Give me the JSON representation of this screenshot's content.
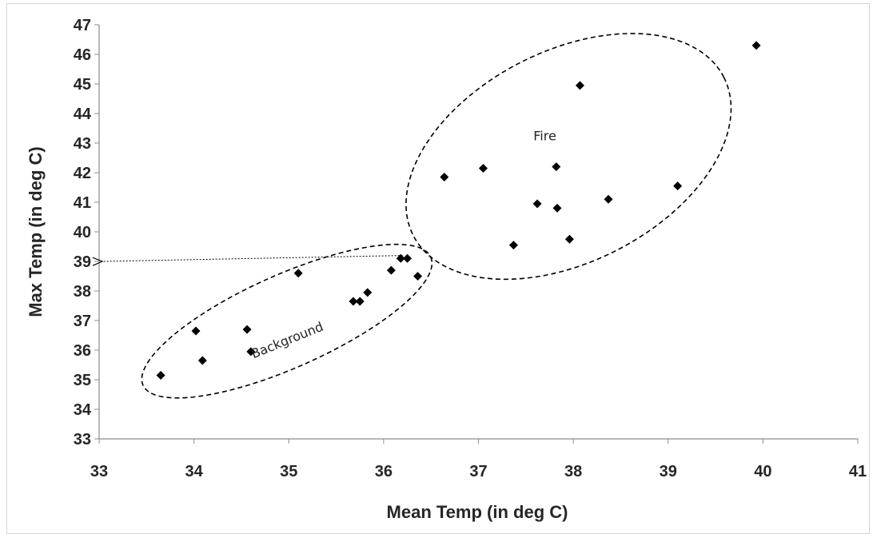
{
  "chart_data": {
    "type": "scatter",
    "title": "",
    "xlabel": "Mean Temp (in deg C)",
    "ylabel": "Max Temp (in deg C)",
    "xlim": [
      33,
      41
    ],
    "ylim": [
      33,
      47
    ],
    "x_ticks": [
      "33",
      "34",
      "35",
      "36",
      "37",
      "38",
      "39",
      "40",
      "41"
    ],
    "y_ticks": [
      "33",
      "34",
      "35",
      "36",
      "37",
      "38",
      "39",
      "40",
      "41",
      "42",
      "43",
      "44",
      "45",
      "46",
      "47"
    ],
    "grid": false,
    "legend": "none",
    "marker": "diamond",
    "marker_color": "#000000",
    "points": [
      {
        "x": 33.65,
        "y": 35.15
      },
      {
        "x": 34.02,
        "y": 36.65
      },
      {
        "x": 34.09,
        "y": 35.65
      },
      {
        "x": 34.56,
        "y": 36.7
      },
      {
        "x": 34.6,
        "y": 35.95
      },
      {
        "x": 35.1,
        "y": 38.6
      },
      {
        "x": 35.68,
        "y": 37.65
      },
      {
        "x": 35.75,
        "y": 37.65
      },
      {
        "x": 35.83,
        "y": 37.95
      },
      {
        "x": 36.08,
        "y": 38.7
      },
      {
        "x": 36.18,
        "y": 39.1
      },
      {
        "x": 36.25,
        "y": 39.1
      },
      {
        "x": 36.36,
        "y": 38.5
      },
      {
        "x": 36.64,
        "y": 41.85
      },
      {
        "x": 37.05,
        "y": 42.15
      },
      {
        "x": 37.37,
        "y": 39.55
      },
      {
        "x": 37.62,
        "y": 40.95
      },
      {
        "x": 37.82,
        "y": 42.2
      },
      {
        "x": 37.83,
        "y": 40.8
      },
      {
        "x": 37.96,
        "y": 39.75
      },
      {
        "x": 38.07,
        "y": 44.95
      },
      {
        "x": 38.37,
        "y": 41.1
      },
      {
        "x": 39.1,
        "y": 41.55
      },
      {
        "x": 39.93,
        "y": 46.3
      }
    ],
    "annotations": [
      {
        "text": "Fire",
        "x": 37.7,
        "y": 43.1
      },
      {
        "text": "Background",
        "x": 35.0,
        "y": 36.2
      }
    ],
    "arrow": {
      "from_x": 36.2,
      "from_y": 39.2,
      "to_x": 33.0,
      "to_y": 39.0
    }
  }
}
